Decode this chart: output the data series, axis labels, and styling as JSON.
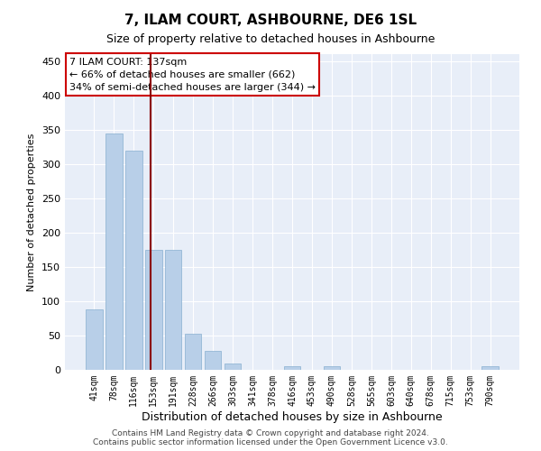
{
  "title": "7, ILAM COURT, ASHBOURNE, DE6 1SL",
  "subtitle": "Size of property relative to detached houses in Ashbourne",
  "xlabel": "Distribution of detached houses by size in Ashbourne",
  "ylabel": "Number of detached properties",
  "bar_labels": [
    "41sqm",
    "78sqm",
    "116sqm",
    "153sqm",
    "191sqm",
    "228sqm",
    "266sqm",
    "303sqm",
    "341sqm",
    "378sqm",
    "416sqm",
    "453sqm",
    "490sqm",
    "528sqm",
    "565sqm",
    "603sqm",
    "640sqm",
    "678sqm",
    "715sqm",
    "753sqm",
    "790sqm"
  ],
  "bar_values": [
    88,
    345,
    320,
    175,
    175,
    52,
    27,
    9,
    0,
    0,
    5,
    0,
    5,
    0,
    0,
    0,
    0,
    0,
    0,
    0,
    5
  ],
  "bar_color": "#b8cfe8",
  "bar_edge_color": "#88afd0",
  "vline_color": "#8b0000",
  "annotation_text": "7 ILAM COURT: 137sqm\n← 66% of detached houses are smaller (662)\n34% of semi-detached houses are larger (344) →",
  "annotation_box_color": "#ffffff",
  "annotation_box_edge": "#cc0000",
  "ylim": [
    0,
    460
  ],
  "yticks": [
    0,
    50,
    100,
    150,
    200,
    250,
    300,
    350,
    400,
    450
  ],
  "bg_color": "#e8eef8",
  "footer_text": "Contains HM Land Registry data © Crown copyright and database right 2024.\nContains public sector information licensed under the Open Government Licence v3.0."
}
